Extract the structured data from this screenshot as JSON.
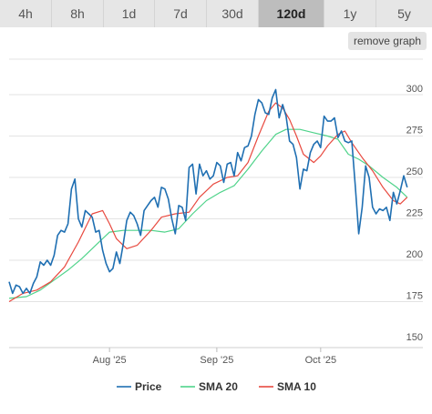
{
  "tabs": [
    {
      "label": "4h",
      "active": false
    },
    {
      "label": "8h",
      "active": false
    },
    {
      "label": "1d",
      "active": false
    },
    {
      "label": "7d",
      "active": false
    },
    {
      "label": "30d",
      "active": false
    },
    {
      "label": "120d",
      "active": true
    },
    {
      "label": "1y",
      "active": false
    },
    {
      "label": "5y",
      "active": false
    }
  ],
  "remove_button_label": "remove graph",
  "colors": {
    "price": "#1f6fb2",
    "sma20": "#4fd38a",
    "sma10": "#e8493f"
  },
  "chart_data": {
    "type": "line",
    "xlabel": "",
    "ylabel": "",
    "ylim": [
      150,
      310
    ],
    "yticks": [
      150,
      175,
      200,
      225,
      250,
      275,
      300
    ],
    "xlim": [
      0,
      119
    ],
    "xticks": [
      {
        "x": 29,
        "label": "Aug '25"
      },
      {
        "x": 60,
        "label": "Sep '25"
      },
      {
        "x": 90,
        "label": "Oct '25"
      }
    ],
    "grid": true,
    "legend_position": "bottom",
    "series": [
      {
        "name": "Price",
        "color": "#1f6fb2",
        "points": [
          [
            0,
            187
          ],
          [
            1,
            180
          ],
          [
            2,
            185
          ],
          [
            3,
            184
          ],
          [
            4,
            180
          ],
          [
            5,
            183
          ],
          [
            6,
            180
          ],
          [
            7,
            186
          ],
          [
            8,
            190
          ],
          [
            9,
            199
          ],
          [
            10,
            197
          ],
          [
            11,
            200
          ],
          [
            12,
            197
          ],
          [
            13,
            203
          ],
          [
            14,
            215
          ],
          [
            15,
            218
          ],
          [
            16,
            217
          ],
          [
            17,
            222
          ],
          [
            18,
            243
          ],
          [
            19,
            249
          ],
          [
            20,
            225
          ],
          [
            21,
            220
          ],
          [
            22,
            230
          ],
          [
            23,
            228
          ],
          [
            24,
            226
          ],
          [
            25,
            217
          ],
          [
            26,
            218
          ],
          [
            27,
            206
          ],
          [
            28,
            198
          ],
          [
            29,
            193
          ],
          [
            30,
            195
          ],
          [
            31,
            205
          ],
          [
            32,
            198
          ],
          [
            33,
            210
          ],
          [
            34,
            224
          ],
          [
            35,
            229
          ],
          [
            36,
            227
          ],
          [
            37,
            222
          ],
          [
            38,
            215
          ],
          [
            39,
            230
          ],
          [
            40,
            233
          ],
          [
            41,
            236
          ],
          [
            42,
            238
          ],
          [
            43,
            232
          ],
          [
            44,
            244
          ],
          [
            45,
            243
          ],
          [
            46,
            237
          ],
          [
            47,
            225
          ],
          [
            48,
            216
          ],
          [
            49,
            233
          ],
          [
            50,
            232
          ],
          [
            51,
            224
          ],
          [
            52,
            256
          ],
          [
            53,
            258
          ],
          [
            54,
            240
          ],
          [
            55,
            258
          ],
          [
            56,
            251
          ],
          [
            57,
            254
          ],
          [
            58,
            249
          ],
          [
            59,
            251
          ],
          [
            60,
            259
          ],
          [
            61,
            257
          ],
          [
            62,
            247
          ],
          [
            63,
            258
          ],
          [
            64,
            259
          ],
          [
            65,
            251
          ],
          [
            66,
            265
          ],
          [
            67,
            260
          ],
          [
            68,
            268
          ],
          [
            69,
            269
          ],
          [
            70,
            275
          ],
          [
            71,
            288
          ],
          [
            72,
            297
          ],
          [
            73,
            295
          ],
          [
            74,
            289
          ],
          [
            75,
            288
          ],
          [
            76,
            298
          ],
          [
            77,
            303
          ],
          [
            78,
            286
          ],
          [
            79,
            294
          ],
          [
            80,
            287
          ],
          [
            81,
            272
          ],
          [
            82,
            270
          ],
          [
            83,
            262
          ],
          [
            84,
            243
          ],
          [
            85,
            255
          ],
          [
            86,
            254
          ],
          [
            87,
            265
          ],
          [
            88,
            270
          ],
          [
            89,
            272
          ],
          [
            90,
            268
          ],
          [
            91,
            287
          ],
          [
            92,
            284
          ],
          [
            93,
            284
          ],
          [
            94,
            286
          ],
          [
            95,
            274
          ],
          [
            96,
            278
          ],
          [
            97,
            272
          ],
          [
            98,
            271
          ],
          [
            99,
            272
          ],
          [
            100,
            245
          ],
          [
            101,
            216
          ],
          [
            102,
            232
          ],
          [
            103,
            257
          ],
          [
            104,
            250
          ],
          [
            105,
            232
          ],
          [
            106,
            228
          ],
          [
            107,
            231
          ],
          [
            108,
            230
          ],
          [
            109,
            232
          ],
          [
            110,
            224
          ],
          [
            111,
            241
          ],
          [
            112,
            234
          ],
          [
            113,
            242
          ],
          [
            114,
            251
          ],
          [
            115,
            244
          ]
        ]
      },
      {
        "name": "SMA 20",
        "color": "#4fd38a",
        "points": [
          [
            0,
            177
          ],
          [
            5,
            178
          ],
          [
            9,
            182
          ],
          [
            13,
            188
          ],
          [
            17,
            194
          ],
          [
            21,
            201
          ],
          [
            25,
            209
          ],
          [
            29,
            217
          ],
          [
            33,
            218
          ],
          [
            37,
            218
          ],
          [
            41,
            218
          ],
          [
            45,
            217
          ],
          [
            49,
            219
          ],
          [
            53,
            228
          ],
          [
            57,
            236
          ],
          [
            61,
            241
          ],
          [
            65,
            245
          ],
          [
            69,
            255
          ],
          [
            73,
            266
          ],
          [
            77,
            276
          ],
          [
            80,
            279
          ],
          [
            84,
            279
          ],
          [
            88,
            277
          ],
          [
            92,
            275
          ],
          [
            95,
            273
          ],
          [
            98,
            264
          ],
          [
            101,
            261
          ],
          [
            104,
            257
          ],
          [
            108,
            250
          ],
          [
            112,
            244
          ],
          [
            115,
            238
          ]
        ]
      },
      {
        "name": "SMA 10",
        "color": "#e8493f",
        "points": [
          [
            0,
            175
          ],
          [
            4,
            180
          ],
          [
            8,
            182
          ],
          [
            12,
            187
          ],
          [
            16,
            196
          ],
          [
            20,
            211
          ],
          [
            24,
            228
          ],
          [
            27,
            230
          ],
          [
            29,
            222
          ],
          [
            31,
            213
          ],
          [
            34,
            207
          ],
          [
            37,
            209
          ],
          [
            41,
            218
          ],
          [
            44,
            226
          ],
          [
            48,
            228
          ],
          [
            52,
            229
          ],
          [
            55,
            238
          ],
          [
            59,
            246
          ],
          [
            63,
            250
          ],
          [
            66,
            251
          ],
          [
            69,
            259
          ],
          [
            72,
            275
          ],
          [
            75,
            290
          ],
          [
            77,
            295
          ],
          [
            79,
            292
          ],
          [
            81,
            285
          ],
          [
            83,
            275
          ],
          [
            85,
            264
          ],
          [
            88,
            259
          ],
          [
            90,
            263
          ],
          [
            92,
            269
          ],
          [
            95,
            276
          ],
          [
            97,
            278
          ],
          [
            99,
            271
          ],
          [
            102,
            262
          ],
          [
            105,
            254
          ],
          [
            108,
            244
          ],
          [
            111,
            236
          ],
          [
            113,
            234
          ],
          [
            115,
            238
          ]
        ]
      }
    ]
  }
}
